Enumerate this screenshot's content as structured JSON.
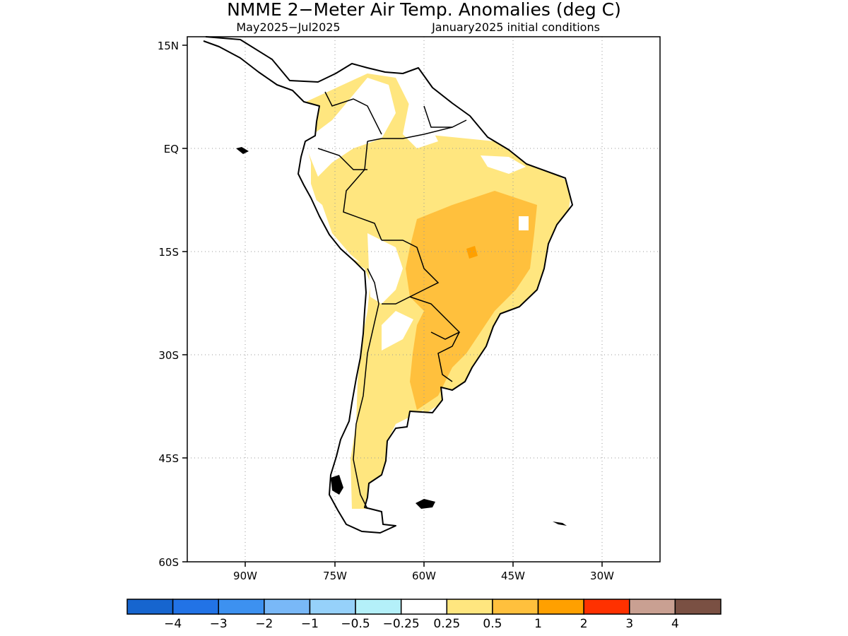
{
  "title": "NMME 2−Meter Air Temp. Anomalies (deg C)",
  "subtitle_left": "May2025−Jul2025",
  "subtitle_right": "January2025 initial conditions",
  "lat_ticks": [
    "15N",
    "EQ",
    "15S",
    "30S",
    "45S",
    "60S"
  ],
  "lon_ticks": [
    "90W",
    "75W",
    "60W",
    "45W",
    "30W"
  ],
  "colorbar": {
    "colors": [
      "#1665cf",
      "#2273e6",
      "#3d91f0",
      "#79b8f7",
      "#96d1fa",
      "#b4f0f9",
      "#ffffff",
      "#ffe67f",
      "#ffc03d",
      "#ffa000",
      "#ff3100",
      "#c9a092",
      "#7a5043"
    ],
    "labels": [
      "−4",
      "−3",
      "−2",
      "−1",
      "−0.5",
      "−0.25",
      "0.25",
      "0.5",
      "1",
      "2",
      "3",
      "4"
    ]
  },
  "map_colors": {
    "anomaly_low": "#ffe67f",
    "anomaly_mid": "#ffc03d",
    "anomaly_high": "#ffa000",
    "coast": "#000000",
    "grid": "#999999"
  }
}
